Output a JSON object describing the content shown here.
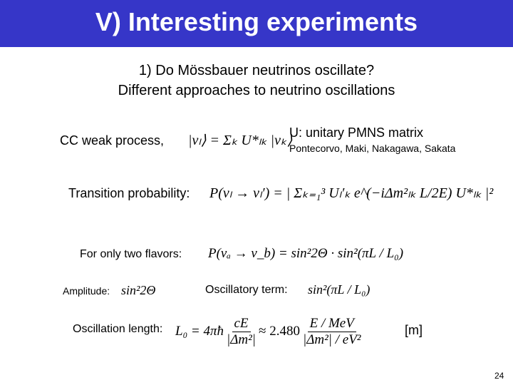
{
  "header": {
    "title": "V) Interesting experiments"
  },
  "subtitle": [
    "1) Do Mössbauer neutrinos oscillate?",
    "Different approaches to neutrino oscillations"
  ],
  "cc": {
    "label": "CC weak process,",
    "formula": "|νₗ⟩ = Σₖ U*ₗₖ |νₖ⟩",
    "note": "U: unitary PMNS matrix",
    "names": "Pontecorvo, Maki, Nakagawa, Sakata"
  },
  "transition": {
    "label": "Transition probability:",
    "formula": "P(νₗ → νₗ′) = | Σₖ₌₁³ Uₗ′ₖ e^(−iΔm²ₗₖ L/2E) U*ₗₖ |²"
  },
  "two_flavors": {
    "label": "For only two flavors:",
    "formula": "P(νₐ → ν_b) = sin²2Θ · sin²(πL / L₀)"
  },
  "amplitude": {
    "label": "Amplitude:",
    "formula": "sin²2Θ"
  },
  "oscillatory": {
    "label": "Oscillatory term:",
    "formula": "sin²(πL / L₀)"
  },
  "length": {
    "label": "Oscillation length:",
    "lhs": "L₀ = 4πħ",
    "num1": "cE",
    "den1": "|Δm²|",
    "mid": "≈ 2.480",
    "num2": "E / MeV",
    "den2": "|Δm²| / eV²",
    "unit": "[m]"
  },
  "page_number": "24"
}
